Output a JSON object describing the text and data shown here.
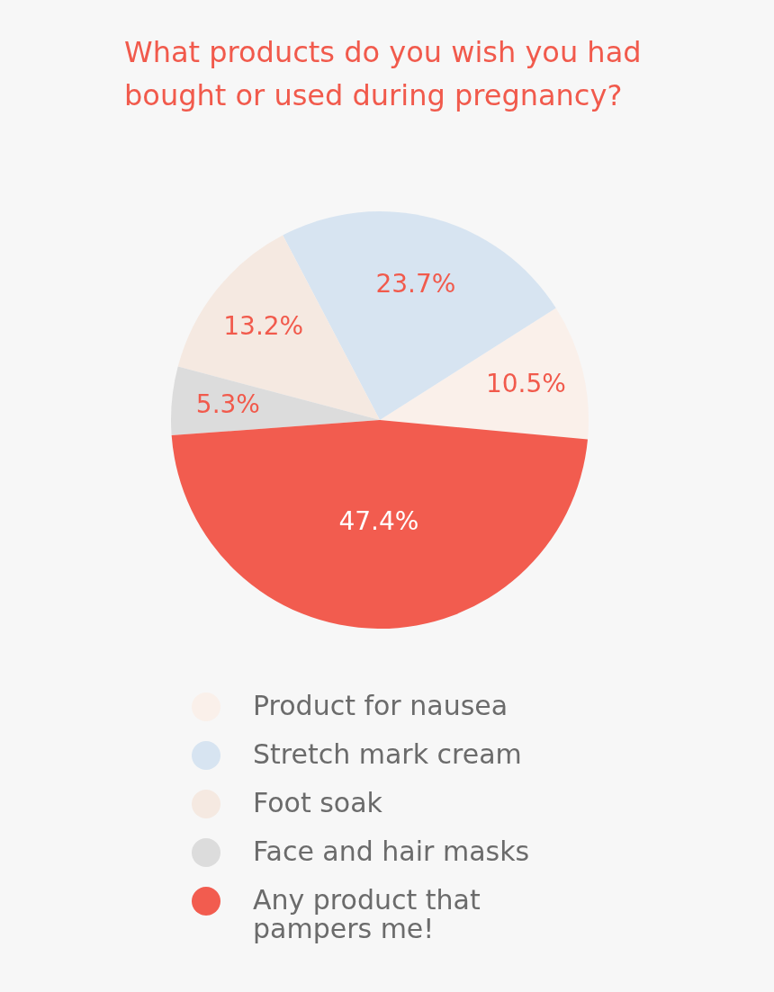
{
  "chart_data": {
    "type": "pie",
    "title": "What products do you wish you had bought or used during pregnancy?",
    "categories": [
      "Product for nausea",
      "Stretch mark cream",
      "Foot soak",
      "Face and hair masks",
      "Any product that pampers me!"
    ],
    "values": [
      10.5,
      23.7,
      13.2,
      5.3,
      47.4
    ],
    "value_labels": [
      "10.5%",
      "23.7%",
      "13.2%",
      "5.3%",
      "47.4%"
    ],
    "colors": [
      "#faf0ea",
      "#d7e4f1",
      "#f5e9e1",
      "#dcdcdc",
      "#f25c4f"
    ],
    "legend": "bottom"
  }
}
